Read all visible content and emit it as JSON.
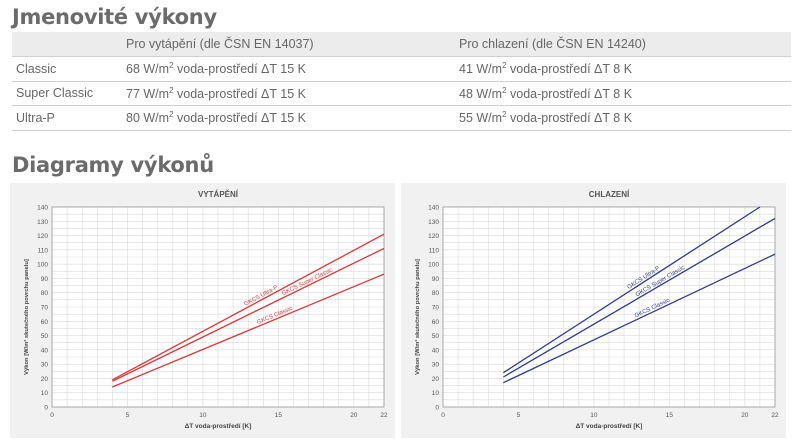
{
  "section1_title": "Jmenovité výkony",
  "section2_title": "Diagramy výkonů",
  "table": {
    "headers": [
      "",
      "Pro vytápění (dle ČSN EN 14037)",
      "Pro chlazení (dle ČSN EN 14240)"
    ],
    "rows": [
      {
        "name": "Classic",
        "heat_value": "68 W/m",
        "heat_suffix": " voda-prostředí ΔT 15 K",
        "cool_value": "41 W/m",
        "cool_suffix": " voda-prostředí ΔT 8 K"
      },
      {
        "name": "Super Classic",
        "heat_value": "77 W/m",
        "heat_suffix": " voda-prostředí ΔT 15 K",
        "cool_value": "48 W/m",
        "cool_suffix": " voda-prostředí ΔT 8 K"
      },
      {
        "name": "Ultra-P",
        "heat_value": "80 W/m",
        "heat_suffix": " voda-prostředí ΔT 15 K",
        "cool_value": "55 W/m",
        "cool_suffix": " voda-prostředí ΔT 8 K"
      }
    ]
  },
  "chart_data": [
    {
      "type": "line",
      "title": "VYTÁPĚNÍ",
      "xlabel": "ΔT voda-prostředí [K]",
      "ylabel": "Výkon [W/m² skutečného povrchu panelu]",
      "xlim": [
        0,
        22
      ],
      "ylim": [
        0,
        140
      ],
      "xticks": [
        0,
        5,
        10,
        15,
        20,
        22
      ],
      "yticks": [
        0,
        10,
        20,
        30,
        40,
        50,
        60,
        70,
        80,
        90,
        100,
        110,
        120,
        130,
        140
      ],
      "grid": true,
      "color": "#d8383a",
      "series": [
        {
          "name": "GKCS Ultra-P",
          "x": [
            4,
            22
          ],
          "y": [
            19,
            121
          ],
          "label_at": 0.55
        },
        {
          "name": "GKCS Super Classic",
          "x": [
            4,
            22
          ],
          "y": [
            18,
            111
          ],
          "label_at": 0.72
        },
        {
          "name": "GKCS Classic",
          "x": [
            4,
            22
          ],
          "y": [
            14,
            93
          ],
          "label_at": 0.6
        }
      ]
    },
    {
      "type": "line",
      "title": "CHLAZENÍ",
      "xlabel": "ΔT voda-prostředí [K]",
      "ylabel": "Výkon [W/m² skutečného povrchu panelu]",
      "xlim": [
        0,
        22
      ],
      "ylim": [
        0,
        140
      ],
      "xticks": [
        0,
        5,
        10,
        15,
        20,
        22
      ],
      "yticks": [
        0,
        10,
        20,
        30,
        40,
        50,
        60,
        70,
        80,
        90,
        100,
        110,
        120,
        130,
        140
      ],
      "grid": true,
      "color": "#2f3a8c",
      "series": [
        {
          "name": "GKCS Ultra-P",
          "x": [
            4,
            21
          ],
          "y": [
            24,
            140
          ],
          "label_at": 0.55
        },
        {
          "name": "GKCS Super Classic",
          "x": [
            4,
            22
          ],
          "y": [
            21,
            132
          ],
          "label_at": 0.58
        },
        {
          "name": "GKCS Classic",
          "x": [
            4,
            22
          ],
          "y": [
            17,
            107
          ],
          "label_at": 0.55
        }
      ]
    }
  ]
}
